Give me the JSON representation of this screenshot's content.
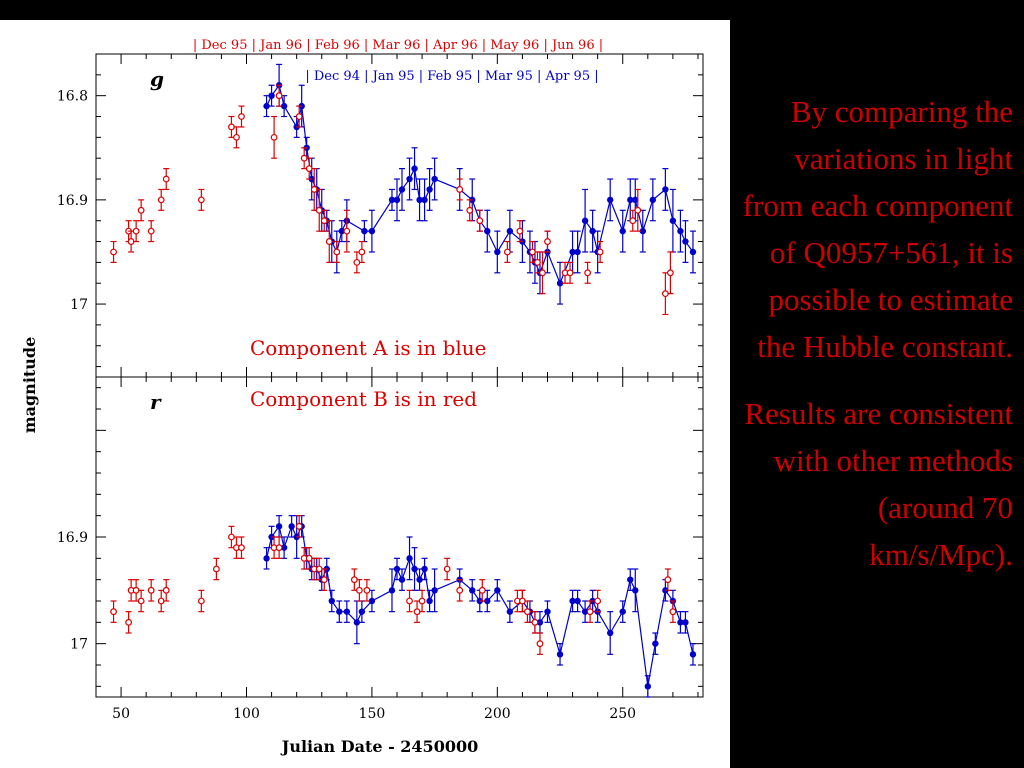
{
  "side_text": {
    "paragraph1": "By comparing the variations in light from each component of Q0957+561, it is possible to estimate the Hubble constant.",
    "paragraph2": "Results are consistent with other methods (around 70 km/s/Mpc)."
  },
  "colors": {
    "component_a": "#0000cc",
    "component_b": "#dd0000",
    "text_red": "#cc0000"
  },
  "chart_data": {
    "type": "scatter",
    "xlabel": "Julian Date - 2450000",
    "ylabel": "magnitude",
    "xlim": [
      40,
      282
    ],
    "xticks": [
      50,
      100,
      150,
      200,
      250
    ],
    "top_axis_labels": [
      "Dec 95",
      "Jan 96",
      "Feb 96",
      "Mar 96",
      "Apr 96",
      "May 96",
      "Jun 96"
    ],
    "second_axis_labels": [
      "Dec 94",
      "Jan 95",
      "Feb 95",
      "Mar 95",
      "Apr 95"
    ],
    "annotations": [
      "Component A is in blue",
      "Component B is in red"
    ],
    "panels": [
      {
        "band": "g",
        "ylim": [
          17.07,
          16.76
        ],
        "yticks": [
          "16.8",
          "16.9",
          "17"
        ],
        "series": [
          {
            "style": "filled-line",
            "color": "#0000cc",
            "x": [
              108,
              110,
              113,
              115,
              120,
              122,
              124,
              126,
              128,
              130,
              132,
              134,
              136,
              138,
              140,
              147,
              150,
              158,
              160,
              162,
              165,
              167,
              169,
              171,
              173,
              175,
              185,
              190,
              193,
              196,
              200,
              205,
              210,
              213,
              215,
              217,
              220,
              225,
              230,
              232,
              235,
              238,
              240,
              245,
              250,
              253,
              255,
              258,
              262,
              267,
              270,
              273,
              275,
              278
            ],
            "y": [
              16.81,
              16.8,
              16.79,
              16.81,
              16.83,
              16.81,
              16.85,
              16.88,
              16.89,
              16.91,
              16.92,
              16.94,
              16.95,
              16.93,
              16.92,
              16.93,
              16.93,
              16.9,
              16.9,
              16.89,
              16.88,
              16.87,
              16.9,
              16.9,
              16.89,
              16.88,
              16.89,
              16.9,
              16.92,
              16.93,
              16.95,
              16.93,
              16.94,
              16.95,
              16.96,
              16.97,
              16.95,
              16.98,
              16.95,
              16.95,
              16.92,
              16.93,
              16.95,
              16.9,
              16.93,
              16.9,
              16.9,
              16.93,
              16.9,
              16.89,
              16.92,
              16.93,
              16.94,
              16.95
            ],
            "err": [
              0.01,
              0.01,
              0.02,
              0.01,
              0.01,
              0.02,
              0.01,
              0.02,
              0.02,
              0.02,
              0.01,
              0.02,
              0.02,
              0.01,
              0.02,
              0.01,
              0.02,
              0.01,
              0.02,
              0.02,
              0.02,
              0.02,
              0.02,
              0.02,
              0.02,
              0.02,
              0.02,
              0.02,
              0.01,
              0.02,
              0.02,
              0.02,
              0.02,
              0.02,
              0.02,
              0.02,
              0.02,
              0.02,
              0.02,
              0.02,
              0.03,
              0.02,
              0.02,
              0.02,
              0.02,
              0.02,
              0.02,
              0.02,
              0.02,
              0.02,
              0.03,
              0.02,
              0.02,
              0.02
            ]
          },
          {
            "style": "open-circle",
            "color": "#dd0000",
            "x": [
              47,
              53,
              54,
              56,
              58,
              62,
              66,
              68,
              82,
              94,
              96,
              98,
              111,
              113,
              121,
              123,
              125,
              127,
              129,
              131,
              133,
              136,
              140,
              144,
              146,
              185,
              189,
              193,
              204,
              209,
              214,
              216,
              218,
              220,
              227,
              229,
              236,
              241,
              254,
              256,
              267,
              269
            ],
            "y": [
              16.95,
              16.93,
              16.94,
              16.93,
              16.91,
              16.93,
              16.9,
              16.88,
              16.9,
              16.83,
              16.84,
              16.82,
              16.84,
              16.8,
              16.82,
              16.86,
              16.87,
              16.89,
              16.91,
              16.92,
              16.94,
              16.95,
              16.93,
              16.96,
              16.95,
              16.89,
              16.91,
              16.92,
              16.95,
              16.93,
              16.95,
              16.96,
              16.97,
              16.94,
              16.97,
              16.97,
              16.97,
              16.95,
              16.92,
              16.91,
              16.99,
              16.97
            ],
            "err": [
              0.01,
              0.01,
              0.01,
              0.01,
              0.01,
              0.01,
              0.01,
              0.01,
              0.01,
              0.01,
              0.01,
              0.01,
              0.02,
              0.01,
              0.01,
              0.01,
              0.01,
              0.02,
              0.02,
              0.01,
              0.02,
              0.01,
              0.02,
              0.01,
              0.01,
              0.01,
              0.01,
              0.01,
              0.01,
              0.01,
              0.01,
              0.01,
              0.02,
              0.01,
              0.01,
              0.01,
              0.01,
              0.01,
              0.01,
              0.02,
              0.02,
              0.02
            ]
          }
        ]
      },
      {
        "band": "r",
        "ylim": [
          17.05,
          16.75
        ],
        "yticks": [
          "16.9",
          "17"
        ],
        "series": [
          {
            "style": "filled-line",
            "color": "#0000cc",
            "x": [
              108,
              110,
              113,
              115,
              118,
              120,
              122,
              124,
              126,
              128,
              130,
              132,
              134,
              137,
              140,
              144,
              146,
              150,
              158,
              160,
              162,
              165,
              167,
              169,
              171,
              173,
              175,
              185,
              190,
              193,
              196,
              200,
              205,
              210,
              213,
              215,
              217,
              220,
              225,
              230,
              232,
              235,
              238,
              240,
              245,
              250,
              253,
              255,
              260,
              263,
              267,
              270,
              273,
              275,
              278
            ],
            "y": [
              16.92,
              16.9,
              16.89,
              16.91,
              16.89,
              16.9,
              16.89,
              16.92,
              16.93,
              16.93,
              16.94,
              16.93,
              16.96,
              16.97,
              16.97,
              16.98,
              16.97,
              16.96,
              16.95,
              16.93,
              16.94,
              16.92,
              16.93,
              16.94,
              16.93,
              16.96,
              16.95,
              16.94,
              16.95,
              16.96,
              16.96,
              16.95,
              16.97,
              16.96,
              16.97,
              16.98,
              16.98,
              16.97,
              17.01,
              16.96,
              16.96,
              16.97,
              16.96,
              16.97,
              16.99,
              16.97,
              16.94,
              16.95,
              17.04,
              17.0,
              16.95,
              16.96,
              16.98,
              16.98,
              17.01
            ],
            "err": [
              0.01,
              0.01,
              0.01,
              0.01,
              0.01,
              0.02,
              0.01,
              0.01,
              0.01,
              0.01,
              0.01,
              0.01,
              0.01,
              0.01,
              0.01,
              0.02,
              0.01,
              0.01,
              0.02,
              0.01,
              0.01,
              0.02,
              0.02,
              0.01,
              0.01,
              0.01,
              0.02,
              0.01,
              0.01,
              0.01,
              0.01,
              0.01,
              0.01,
              0.01,
              0.01,
              0.01,
              0.01,
              0.01,
              0.01,
              0.01,
              0.01,
              0.01,
              0.01,
              0.01,
              0.02,
              0.01,
              0.01,
              0.02,
              0.01,
              0.01,
              0.01,
              0.01,
              0.01,
              0.01,
              0.01
            ]
          },
          {
            "style": "open-circle",
            "color": "#dd0000",
            "x": [
              47,
              53,
              54,
              56,
              58,
              62,
              66,
              68,
              82,
              88,
              94,
              96,
              98,
              111,
              113,
              121,
              123,
              125,
              127,
              129,
              131,
              143,
              145,
              148,
              165,
              168,
              170,
              180,
              185,
              194,
              208,
              210,
              212,
              215,
              217,
              237,
              240,
              268,
              270
            ],
            "y": [
              16.97,
              16.98,
              16.95,
              16.95,
              16.96,
              16.95,
              16.96,
              16.95,
              16.96,
              16.93,
              16.9,
              16.91,
              16.91,
              16.91,
              16.91,
              16.89,
              16.92,
              16.92,
              16.93,
              16.93,
              16.94,
              16.94,
              16.95,
              16.95,
              16.96,
              16.97,
              16.96,
              16.93,
              16.95,
              16.95,
              16.96,
              16.96,
              16.97,
              16.98,
              17.0,
              16.97,
              16.96,
              16.94,
              16.97
            ],
            "err": [
              0.01,
              0.01,
              0.01,
              0.01,
              0.01,
              0.01,
              0.01,
              0.01,
              0.01,
              0.01,
              0.01,
              0.01,
              0.01,
              0.01,
              0.01,
              0.01,
              0.01,
              0.01,
              0.01,
              0.01,
              0.01,
              0.01,
              0.01,
              0.01,
              0.01,
              0.01,
              0.01,
              0.01,
              0.01,
              0.01,
              0.01,
              0.01,
              0.01,
              0.01,
              0.01,
              0.01,
              0.01,
              0.01,
              0.01
            ]
          }
        ]
      }
    ]
  }
}
